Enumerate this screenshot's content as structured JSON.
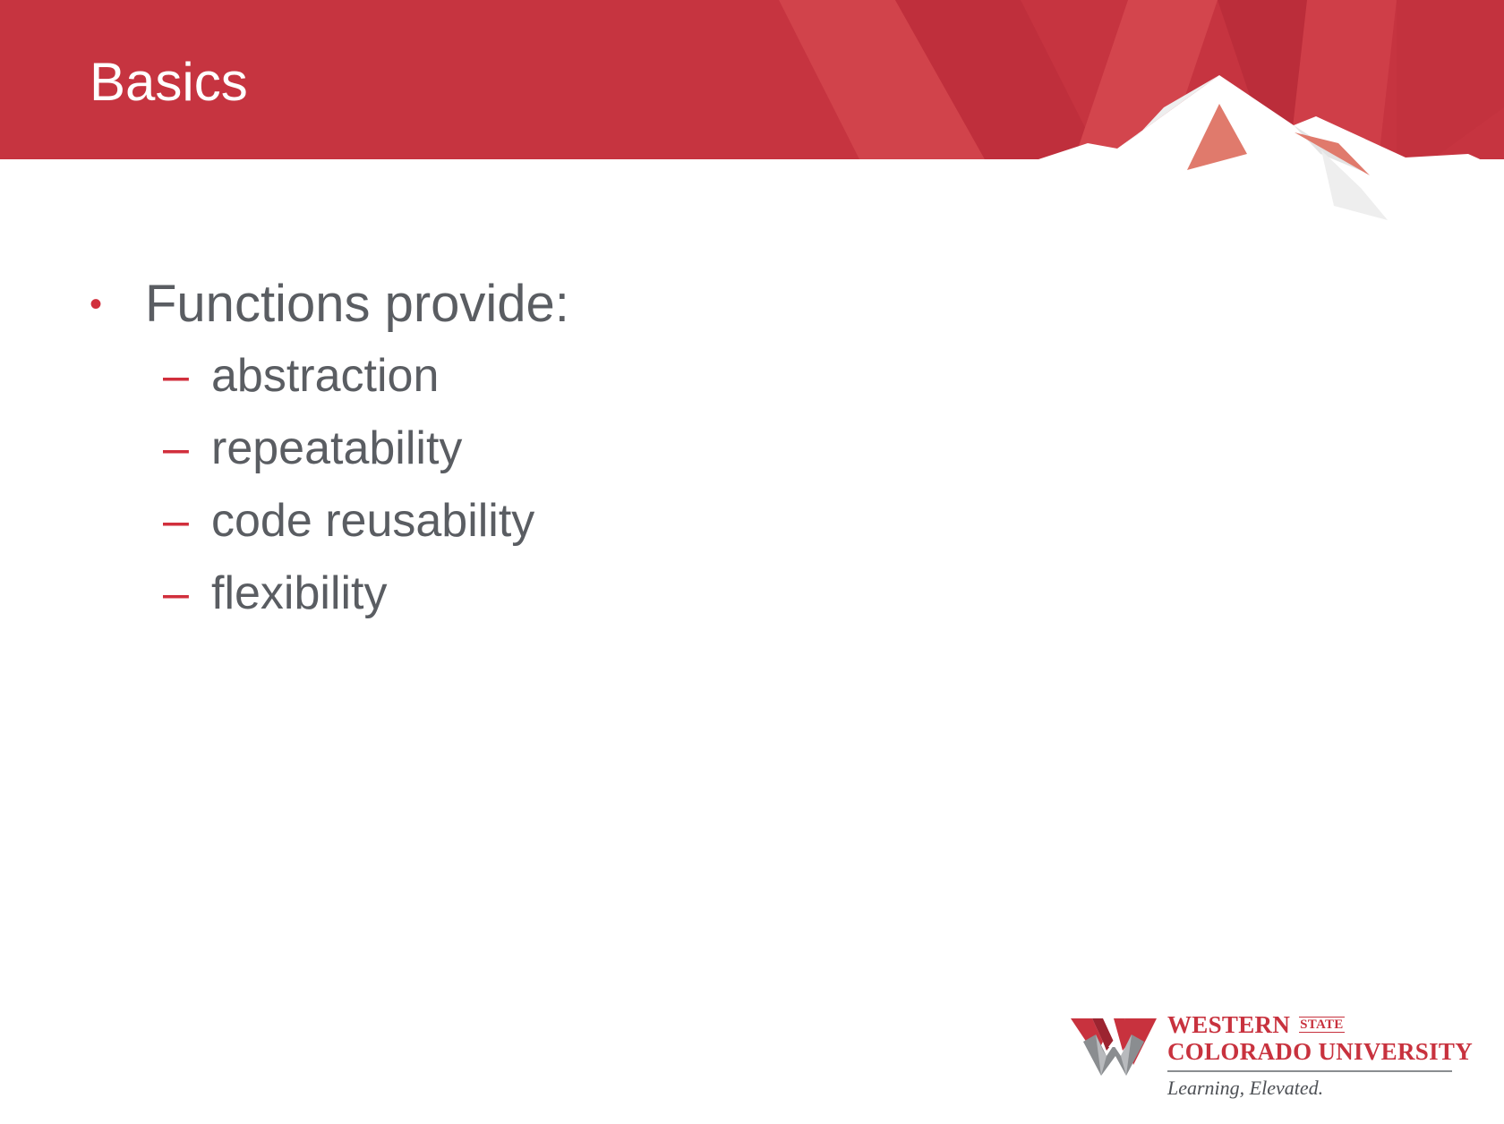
{
  "slide": {
    "title": "Basics",
    "bullet": {
      "marker": "•",
      "text": "Functions provide:",
      "sub_items": [
        {
          "marker": "–",
          "text": "abstraction"
        },
        {
          "marker": "–",
          "text": "repeatability"
        },
        {
          "marker": "–",
          "text": "code reusability"
        },
        {
          "marker": "–",
          "text": "flexibility"
        }
      ]
    }
  },
  "logo": {
    "line1": "WESTERN",
    "state": "STATE",
    "line2": "COLORADO UNIVERSITY",
    "tagline": "Learning, Elevated."
  },
  "colors": {
    "banner_red": "#c63440",
    "accent_red": "#d12f3c",
    "body_text": "#5a5d62"
  }
}
